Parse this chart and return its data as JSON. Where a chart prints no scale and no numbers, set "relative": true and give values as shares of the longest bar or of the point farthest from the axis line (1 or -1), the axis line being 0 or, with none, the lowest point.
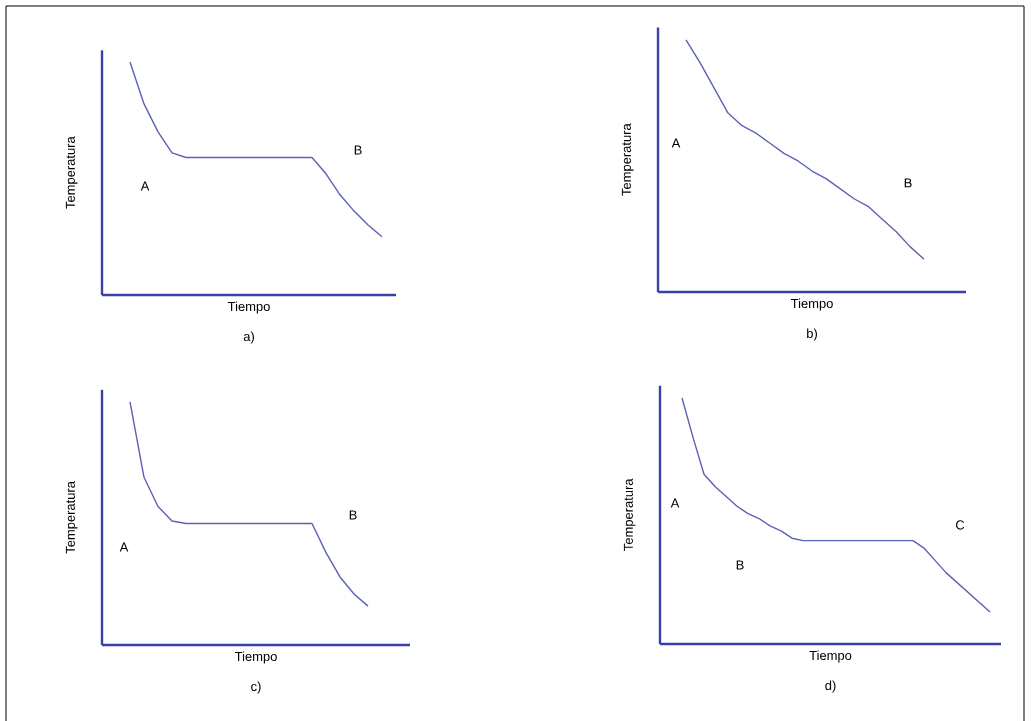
{
  "chart_data": [
    {
      "type": "line",
      "relative": true,
      "title": "a)",
      "xlabel": "Tiempo",
      "ylabel": "Temperatura",
      "annotations": [
        "A",
        "B"
      ],
      "categories": [
        null,
        null,
        null,
        null,
        null,
        null,
        null,
        null,
        null,
        null,
        null,
        null,
        null,
        null,
        null,
        null,
        null,
        null,
        null,
        null,
        null,
        null
      ],
      "series": [
        {
          "color": "#5b62b5",
          "values": [
            null,
            null,
            1.0,
            0.82,
            0.7,
            0.61,
            0.59,
            0.59,
            0.59,
            0.59,
            0.59,
            0.59,
            0.59,
            0.59,
            0.59,
            0.59,
            0.52,
            0.43,
            0.36,
            0.3,
            0.25,
            null
          ]
        }
      ]
    },
    {
      "type": "line",
      "relative": true,
      "title": "b)",
      "xlabel": "Tiempo",
      "ylabel": "Temperatura",
      "annotations": [
        "A",
        "B"
      ],
      "categories": [
        null,
        null,
        null,
        null,
        null,
        null,
        null,
        null,
        null,
        null,
        null,
        null,
        null,
        null,
        null,
        null,
        null,
        null,
        null,
        null,
        null,
        null,
        null
      ],
      "series": [
        {
          "color": "#5b62b5",
          "values": [
            null,
            null,
            1.0,
            0.91,
            0.81,
            0.71,
            0.66,
            0.63,
            0.59,
            0.55,
            0.52,
            0.48,
            0.45,
            0.41,
            0.37,
            0.34,
            0.29,
            0.24,
            0.18,
            0.13,
            null,
            null,
            null
          ]
        }
      ]
    },
    {
      "type": "line",
      "relative": true,
      "title": "c)",
      "xlabel": "Tiempo",
      "ylabel": "Temperatura",
      "annotations": [
        "A",
        "B"
      ],
      "categories": [
        null,
        null,
        null,
        null,
        null,
        null,
        null,
        null,
        null,
        null,
        null,
        null,
        null,
        null,
        null,
        null,
        null,
        null,
        null,
        null,
        null,
        null,
        null
      ],
      "series": [
        {
          "color": "#5b62b5",
          "values": [
            null,
            null,
            1.0,
            0.69,
            0.57,
            0.51,
            0.5,
            0.5,
            0.5,
            0.5,
            0.5,
            0.5,
            0.5,
            0.5,
            0.5,
            0.5,
            0.38,
            0.28,
            0.21,
            0.16,
            null,
            null,
            null
          ]
        }
      ]
    },
    {
      "type": "line",
      "relative": true,
      "title": "d)",
      "xlabel": "Tiempo",
      "ylabel": "Temperatura",
      "annotations": [
        "A",
        "B",
        "C"
      ],
      "categories": [
        null,
        null,
        null,
        null,
        null,
        null,
        null,
        null,
        null,
        null,
        null,
        null,
        null,
        null,
        null,
        null,
        null,
        null,
        null,
        null,
        null,
        null,
        null,
        null,
        null,
        null,
        null,
        null,
        null,
        null,
        null,
        null
      ],
      "series": [
        {
          "color": "#5b62b5",
          "values": [
            null,
            null,
            1.0,
            0.84,
            0.69,
            0.64,
            0.6,
            0.56,
            0.53,
            0.51,
            0.48,
            0.46,
            0.43,
            0.42,
            0.42,
            0.42,
            0.42,
            0.42,
            0.42,
            0.42,
            0.42,
            0.42,
            0.42,
            0.42,
            0.39,
            0.34,
            0.29,
            0.25,
            0.21,
            0.17,
            0.13,
            null
          ]
        }
      ]
    }
  ]
}
